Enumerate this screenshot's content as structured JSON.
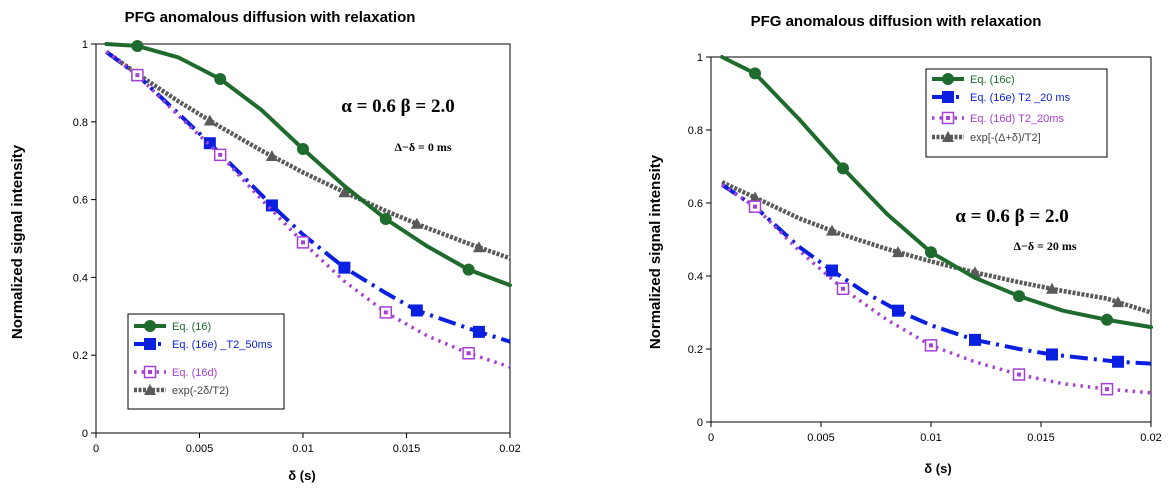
{
  "chart_data": [
    {
      "type": "line",
      "title": "PFG anomalous diffusion with relaxation",
      "xlabel": "δ (s)",
      "ylabel": "Normalized signal intensity",
      "xlim": [
        0,
        0.02
      ],
      "ylim": [
        0,
        1
      ],
      "x_ticks": [
        "0",
        "0.005",
        "0.01",
        "0.015",
        "0.02"
      ],
      "y_ticks": [
        "0",
        "0.2",
        "0.4",
        "0.6",
        "0.8",
        "1"
      ],
      "grid": false,
      "legend_position": "bottom-left",
      "annotations": [
        "α = 0.6  β = 2.0",
        "Δ−δ = 0 ms"
      ],
      "series": [
        {
          "name": "Eq. (16)",
          "color": "#1f6b2e",
          "style": "solid",
          "marker": "circle",
          "x": [
            0.0005,
            0.002,
            0.004,
            0.006,
            0.008,
            0.01,
            0.012,
            0.014,
            0.016,
            0.018,
            0.02
          ],
          "y": [
            1.0,
            0.995,
            0.965,
            0.91,
            0.83,
            0.73,
            0.635,
            0.55,
            0.48,
            0.42,
            0.38
          ],
          "marker_x": [
            0.002,
            0.006,
            0.01,
            0.014,
            0.018
          ]
        },
        {
          "name": "Eq. (16e) _T2_50ms",
          "color": "#0a1fe0",
          "style": "dashdot",
          "marker": "square",
          "x": [
            0.0005,
            0.002,
            0.004,
            0.0055,
            0.007,
            0.0085,
            0.01,
            0.012,
            0.014,
            0.0155,
            0.0185,
            0.02
          ],
          "y": [
            0.98,
            0.92,
            0.82,
            0.745,
            0.665,
            0.585,
            0.51,
            0.425,
            0.36,
            0.315,
            0.26,
            0.235
          ],
          "marker_x": [
            0.002,
            0.0055,
            0.0085,
            0.012,
            0.0155,
            0.0185
          ]
        },
        {
          "name": "Eq. (16d)",
          "color": "#a640d6",
          "style": "dotted",
          "marker": "open-square",
          "x": [
            0.0005,
            0.002,
            0.004,
            0.006,
            0.008,
            0.01,
            0.012,
            0.014,
            0.016,
            0.018,
            0.02
          ],
          "y": [
            0.98,
            0.92,
            0.815,
            0.715,
            0.6,
            0.49,
            0.39,
            0.31,
            0.25,
            0.205,
            0.17
          ],
          "marker_x": [
            0.002,
            0.006,
            0.01,
            0.014,
            0.018
          ]
        },
        {
          "name": "exp(-2δ/T2)",
          "color": "#5a5a5a",
          "style": "dotted-thick",
          "marker": "triangle",
          "x": [
            0.0005,
            0.002,
            0.004,
            0.006,
            0.008,
            0.01,
            0.012,
            0.014,
            0.016,
            0.018,
            0.02
          ],
          "y": [
            0.98,
            0.923,
            0.852,
            0.787,
            0.726,
            0.67,
            0.619,
            0.571,
            0.527,
            0.487,
            0.449
          ],
          "marker_x": [
            0.002,
            0.0055,
            0.0085,
            0.012,
            0.0155,
            0.0185
          ]
        }
      ]
    },
    {
      "type": "line",
      "title": "PFG anomalous diffusion with relaxation",
      "xlabel": "δ (s)",
      "ylabel": "Normalized signal intensity",
      "xlim": [
        0,
        0.02
      ],
      "ylim": [
        0,
        1
      ],
      "x_ticks": [
        "0",
        "0.005",
        "0.01",
        "0.015",
        "0.02"
      ],
      "y_ticks": [
        "0",
        "0.2",
        "0.4",
        "0.6",
        "0.8",
        "1"
      ],
      "grid": false,
      "legend_position": "top-right",
      "annotations": [
        "α = 0.6  β = 2.0",
        "Δ−δ = 20  ms"
      ],
      "series": [
        {
          "name": "Eq. (16c)",
          "color": "#1f6b2e",
          "style": "solid",
          "marker": "circle",
          "x": [
            0.0005,
            0.002,
            0.004,
            0.006,
            0.008,
            0.01,
            0.012,
            0.014,
            0.016,
            0.018,
            0.02
          ],
          "y": [
            1.0,
            0.955,
            0.83,
            0.695,
            0.57,
            0.465,
            0.395,
            0.345,
            0.305,
            0.28,
            0.26
          ],
          "marker_x": [
            0.002,
            0.006,
            0.01,
            0.014,
            0.018
          ]
        },
        {
          "name": "Eq. (16e) T2 _20 ms",
          "color": "#0a1fe0",
          "style": "dashdot",
          "marker": "square",
          "x": [
            0.0005,
            0.002,
            0.004,
            0.0055,
            0.007,
            0.0085,
            0.01,
            0.012,
            0.014,
            0.0155,
            0.0185,
            0.02
          ],
          "y": [
            0.65,
            0.59,
            0.48,
            0.415,
            0.355,
            0.305,
            0.265,
            0.225,
            0.2,
            0.185,
            0.165,
            0.16
          ],
          "marker_x": [
            0.002,
            0.0055,
            0.0085,
            0.012,
            0.0155,
            0.0185
          ]
        },
        {
          "name": "Eq. (16d)  T2_20ms",
          "color": "#a640d6",
          "style": "dotted",
          "marker": "open-square",
          "x": [
            0.0005,
            0.002,
            0.004,
            0.006,
            0.008,
            0.01,
            0.012,
            0.014,
            0.016,
            0.018,
            0.02
          ],
          "y": [
            0.65,
            0.59,
            0.47,
            0.365,
            0.28,
            0.21,
            0.165,
            0.13,
            0.105,
            0.09,
            0.08
          ],
          "marker_x": [
            0.002,
            0.006,
            0.01,
            0.014,
            0.018
          ]
        },
        {
          "name": "exp[-(Δ+δ)/T2]",
          "color": "#5a5a5a",
          "style": "dotted-thick",
          "marker": "triangle",
          "x": [
            0.0005,
            0.002,
            0.004,
            0.006,
            0.008,
            0.01,
            0.012,
            0.014,
            0.016,
            0.018,
            0.02
          ],
          "y": [
            0.657,
            0.615,
            0.558,
            0.513,
            0.474,
            0.44,
            0.41,
            0.383,
            0.359,
            0.338,
            0.3
          ],
          "marker_x": [
            0.002,
            0.0055,
            0.0085,
            0.012,
            0.0155,
            0.0185
          ]
        }
      ]
    }
  ]
}
